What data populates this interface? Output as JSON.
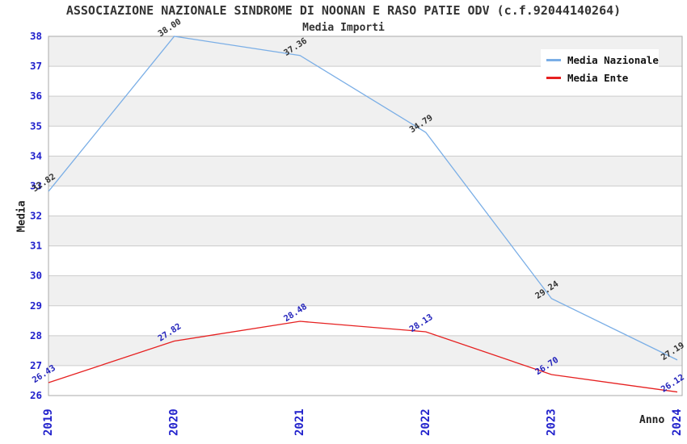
{
  "colors": {
    "background": "#ffffff",
    "band": "#f0f0f0",
    "band_alt": "#ffffff",
    "grid": "#cccccc",
    "axis": "#aaaaaa",
    "tick_label": "#2222cc",
    "title_text": "#333333"
  },
  "chart_data": {
    "type": "line",
    "title": "ASSOCIAZIONE NAZIONALE SINDROME DI NOONAN E RASO PATIE ODV (c.f.92044140264)",
    "subtitle": "Media Importi",
    "xlabel": "Anno",
    "ylabel": "Media",
    "x": [
      2019,
      2020,
      2021,
      2022,
      2023,
      2024
    ],
    "series": [
      {
        "name": "Media Nazionale",
        "color": "#7aaee6",
        "label_color": "#333333",
        "values": [
          32.82,
          38.0,
          37.36,
          34.79,
          29.24,
          27.19
        ]
      },
      {
        "name": "Media Ente",
        "color": "#e62020",
        "label_color": "#2222bb",
        "values": [
          26.43,
          27.82,
          28.48,
          28.13,
          26.7,
          26.12
        ]
      }
    ],
    "ylim": [
      26,
      38
    ],
    "ytick_step": 1,
    "grid": "alternating-horizontal-bands",
    "legend_position": "top-right"
  }
}
